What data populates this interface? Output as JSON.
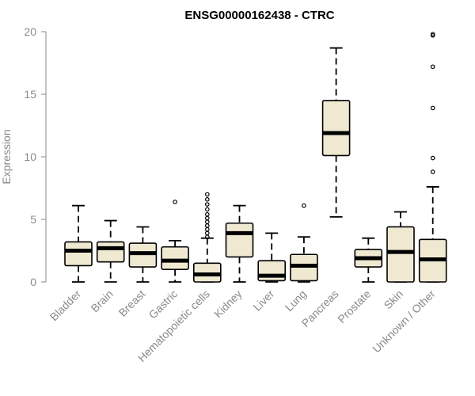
{
  "chart_data": {
    "type": "box",
    "title": "ENSG00000162438 - CTRC",
    "xlabel": "",
    "ylabel": "Expression",
    "ylim": [
      0,
      20
    ],
    "yticks": [
      0,
      5,
      10,
      15,
      20
    ],
    "box_fill": "#f0e9d2",
    "categories": [
      "Bladder",
      "Brain",
      "Breast",
      "Gastric",
      "Hematopoietic cells",
      "Kidney",
      "Liver",
      "Lung",
      "Pancreas",
      "Prostate",
      "Skin",
      "Unknown / Other"
    ],
    "boxes": [
      {
        "whisker_low": 0.0,
        "q1": 1.3,
        "median": 2.5,
        "q3": 3.2,
        "whisker_high": 6.1,
        "outliers": []
      },
      {
        "whisker_low": 0.0,
        "q1": 1.6,
        "median": 2.7,
        "q3": 3.2,
        "whisker_high": 4.9,
        "outliers": []
      },
      {
        "whisker_low": 0.0,
        "q1": 1.2,
        "median": 2.3,
        "q3": 3.1,
        "whisker_high": 4.4,
        "outliers": []
      },
      {
        "whisker_low": 0.0,
        "q1": 1.0,
        "median": 1.7,
        "q3": 2.8,
        "whisker_high": 3.3,
        "outliers": [
          6.4
        ]
      },
      {
        "whisker_low": 0.0,
        "q1": 0.0,
        "median": 0.6,
        "q3": 1.5,
        "whisker_high": 3.5,
        "outliers": [
          3.6,
          3.9,
          4.2,
          4.5,
          4.8,
          5.1,
          5.4,
          5.8,
          6.2,
          6.6,
          7.0
        ]
      },
      {
        "whisker_low": 0.0,
        "q1": 2.0,
        "median": 3.9,
        "q3": 4.7,
        "whisker_high": 6.1,
        "outliers": []
      },
      {
        "whisker_low": 0.0,
        "q1": 0.1,
        "median": 0.5,
        "q3": 1.7,
        "whisker_high": 3.9,
        "outliers": []
      },
      {
        "whisker_low": 0.0,
        "q1": 0.1,
        "median": 1.3,
        "q3": 2.2,
        "whisker_high": 3.6,
        "outliers": [
          6.1
        ]
      },
      {
        "whisker_low": 5.2,
        "q1": 10.1,
        "median": 11.9,
        "q3": 14.5,
        "whisker_high": 18.7,
        "outliers": []
      },
      {
        "whisker_low": 0.0,
        "q1": 1.2,
        "median": 1.9,
        "q3": 2.6,
        "whisker_high": 3.5,
        "outliers": []
      },
      {
        "whisker_low": 0.0,
        "q1": 0.0,
        "median": 2.4,
        "q3": 4.4,
        "whisker_high": 5.6,
        "outliers": []
      },
      {
        "whisker_low": 0.0,
        "q1": 0.0,
        "median": 1.8,
        "q3": 3.4,
        "whisker_high": 7.6,
        "outliers": [
          8.8,
          9.9,
          13.9,
          17.2,
          19.7,
          19.8
        ]
      }
    ]
  }
}
